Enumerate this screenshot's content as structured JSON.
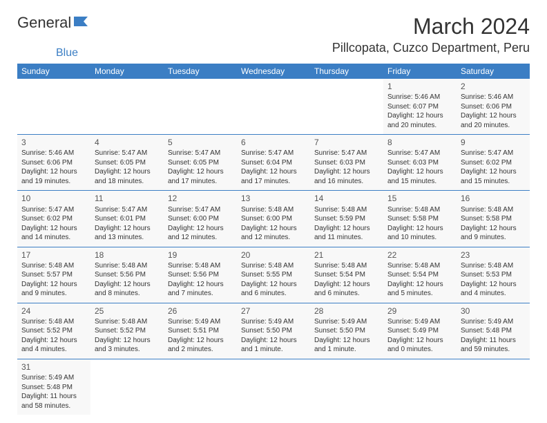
{
  "logo": {
    "text1": "General",
    "text2": "Blue"
  },
  "title": "March 2024",
  "location": "Pillcopata, Cuzco Department, Peru",
  "day_headers": [
    "Sunday",
    "Monday",
    "Tuesday",
    "Wednesday",
    "Thursday",
    "Friday",
    "Saturday"
  ],
  "colors": {
    "header_bg": "#3b7ec4",
    "header_text": "#ffffff",
    "cell_bg": "#f8f8f8",
    "border": "#3b7ec4",
    "logo_accent": "#3b7ec4"
  },
  "weeks": [
    [
      null,
      null,
      null,
      null,
      null,
      {
        "num": "1",
        "sunrise": "Sunrise: 5:46 AM",
        "sunset": "Sunset: 6:07 PM",
        "daylight1": "Daylight: 12 hours",
        "daylight2": "and 20 minutes."
      },
      {
        "num": "2",
        "sunrise": "Sunrise: 5:46 AM",
        "sunset": "Sunset: 6:06 PM",
        "daylight1": "Daylight: 12 hours",
        "daylight2": "and 20 minutes."
      }
    ],
    [
      {
        "num": "3",
        "sunrise": "Sunrise: 5:46 AM",
        "sunset": "Sunset: 6:06 PM",
        "daylight1": "Daylight: 12 hours",
        "daylight2": "and 19 minutes."
      },
      {
        "num": "4",
        "sunrise": "Sunrise: 5:47 AM",
        "sunset": "Sunset: 6:05 PM",
        "daylight1": "Daylight: 12 hours",
        "daylight2": "and 18 minutes."
      },
      {
        "num": "5",
        "sunrise": "Sunrise: 5:47 AM",
        "sunset": "Sunset: 6:05 PM",
        "daylight1": "Daylight: 12 hours",
        "daylight2": "and 17 minutes."
      },
      {
        "num": "6",
        "sunrise": "Sunrise: 5:47 AM",
        "sunset": "Sunset: 6:04 PM",
        "daylight1": "Daylight: 12 hours",
        "daylight2": "and 17 minutes."
      },
      {
        "num": "7",
        "sunrise": "Sunrise: 5:47 AM",
        "sunset": "Sunset: 6:03 PM",
        "daylight1": "Daylight: 12 hours",
        "daylight2": "and 16 minutes."
      },
      {
        "num": "8",
        "sunrise": "Sunrise: 5:47 AM",
        "sunset": "Sunset: 6:03 PM",
        "daylight1": "Daylight: 12 hours",
        "daylight2": "and 15 minutes."
      },
      {
        "num": "9",
        "sunrise": "Sunrise: 5:47 AM",
        "sunset": "Sunset: 6:02 PM",
        "daylight1": "Daylight: 12 hours",
        "daylight2": "and 15 minutes."
      }
    ],
    [
      {
        "num": "10",
        "sunrise": "Sunrise: 5:47 AM",
        "sunset": "Sunset: 6:02 PM",
        "daylight1": "Daylight: 12 hours",
        "daylight2": "and 14 minutes."
      },
      {
        "num": "11",
        "sunrise": "Sunrise: 5:47 AM",
        "sunset": "Sunset: 6:01 PM",
        "daylight1": "Daylight: 12 hours",
        "daylight2": "and 13 minutes."
      },
      {
        "num": "12",
        "sunrise": "Sunrise: 5:47 AM",
        "sunset": "Sunset: 6:00 PM",
        "daylight1": "Daylight: 12 hours",
        "daylight2": "and 12 minutes."
      },
      {
        "num": "13",
        "sunrise": "Sunrise: 5:48 AM",
        "sunset": "Sunset: 6:00 PM",
        "daylight1": "Daylight: 12 hours",
        "daylight2": "and 12 minutes."
      },
      {
        "num": "14",
        "sunrise": "Sunrise: 5:48 AM",
        "sunset": "Sunset: 5:59 PM",
        "daylight1": "Daylight: 12 hours",
        "daylight2": "and 11 minutes."
      },
      {
        "num": "15",
        "sunrise": "Sunrise: 5:48 AM",
        "sunset": "Sunset: 5:58 PM",
        "daylight1": "Daylight: 12 hours",
        "daylight2": "and 10 minutes."
      },
      {
        "num": "16",
        "sunrise": "Sunrise: 5:48 AM",
        "sunset": "Sunset: 5:58 PM",
        "daylight1": "Daylight: 12 hours",
        "daylight2": "and 9 minutes."
      }
    ],
    [
      {
        "num": "17",
        "sunrise": "Sunrise: 5:48 AM",
        "sunset": "Sunset: 5:57 PM",
        "daylight1": "Daylight: 12 hours",
        "daylight2": "and 9 minutes."
      },
      {
        "num": "18",
        "sunrise": "Sunrise: 5:48 AM",
        "sunset": "Sunset: 5:56 PM",
        "daylight1": "Daylight: 12 hours",
        "daylight2": "and 8 minutes."
      },
      {
        "num": "19",
        "sunrise": "Sunrise: 5:48 AM",
        "sunset": "Sunset: 5:56 PM",
        "daylight1": "Daylight: 12 hours",
        "daylight2": "and 7 minutes."
      },
      {
        "num": "20",
        "sunrise": "Sunrise: 5:48 AM",
        "sunset": "Sunset: 5:55 PM",
        "daylight1": "Daylight: 12 hours",
        "daylight2": "and 6 minutes."
      },
      {
        "num": "21",
        "sunrise": "Sunrise: 5:48 AM",
        "sunset": "Sunset: 5:54 PM",
        "daylight1": "Daylight: 12 hours",
        "daylight2": "and 6 minutes."
      },
      {
        "num": "22",
        "sunrise": "Sunrise: 5:48 AM",
        "sunset": "Sunset: 5:54 PM",
        "daylight1": "Daylight: 12 hours",
        "daylight2": "and 5 minutes."
      },
      {
        "num": "23",
        "sunrise": "Sunrise: 5:48 AM",
        "sunset": "Sunset: 5:53 PM",
        "daylight1": "Daylight: 12 hours",
        "daylight2": "and 4 minutes."
      }
    ],
    [
      {
        "num": "24",
        "sunrise": "Sunrise: 5:48 AM",
        "sunset": "Sunset: 5:52 PM",
        "daylight1": "Daylight: 12 hours",
        "daylight2": "and 4 minutes."
      },
      {
        "num": "25",
        "sunrise": "Sunrise: 5:48 AM",
        "sunset": "Sunset: 5:52 PM",
        "daylight1": "Daylight: 12 hours",
        "daylight2": "and 3 minutes."
      },
      {
        "num": "26",
        "sunrise": "Sunrise: 5:49 AM",
        "sunset": "Sunset: 5:51 PM",
        "daylight1": "Daylight: 12 hours",
        "daylight2": "and 2 minutes."
      },
      {
        "num": "27",
        "sunrise": "Sunrise: 5:49 AM",
        "sunset": "Sunset: 5:50 PM",
        "daylight1": "Daylight: 12 hours",
        "daylight2": "and 1 minute."
      },
      {
        "num": "28",
        "sunrise": "Sunrise: 5:49 AM",
        "sunset": "Sunset: 5:50 PM",
        "daylight1": "Daylight: 12 hours",
        "daylight2": "and 1 minute."
      },
      {
        "num": "29",
        "sunrise": "Sunrise: 5:49 AM",
        "sunset": "Sunset: 5:49 PM",
        "daylight1": "Daylight: 12 hours",
        "daylight2": "and 0 minutes."
      },
      {
        "num": "30",
        "sunrise": "Sunrise: 5:49 AM",
        "sunset": "Sunset: 5:48 PM",
        "daylight1": "Daylight: 11 hours",
        "daylight2": "and 59 minutes."
      }
    ],
    [
      {
        "num": "31",
        "sunrise": "Sunrise: 5:49 AM",
        "sunset": "Sunset: 5:48 PM",
        "daylight1": "Daylight: 11 hours",
        "daylight2": "and 58 minutes."
      },
      null,
      null,
      null,
      null,
      null,
      null
    ]
  ]
}
